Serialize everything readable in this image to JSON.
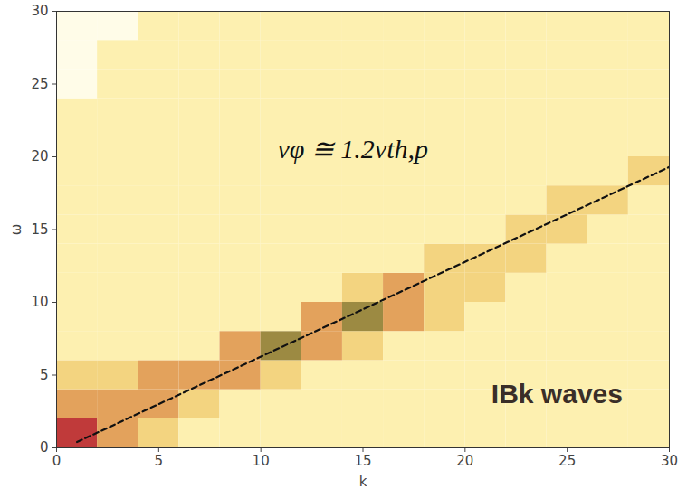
{
  "chart_data": {
    "type": "heatmap",
    "x_label": "k",
    "y_label": "ω",
    "xlim": [
      0,
      30
    ],
    "ylim": [
      0,
      30
    ],
    "xticks": [
      0,
      5,
      10,
      15,
      20,
      25,
      30
    ],
    "yticks": [
      0,
      5,
      10,
      15,
      20,
      25,
      30
    ],
    "grid": false,
    "cells": {
      "k_edges": [
        0,
        2,
        4,
        6,
        8,
        10,
        12,
        14,
        16,
        18,
        20,
        22,
        24,
        26,
        28,
        30
      ],
      "omega_edges": [
        0,
        2,
        4,
        6,
        8,
        10,
        12,
        14,
        16,
        18,
        20,
        22,
        24,
        26,
        28,
        30
      ],
      "z": [
        [
          5,
          3,
          2,
          1,
          1,
          1,
          1,
          1,
          1,
          1,
          1,
          1,
          1,
          1,
          1
        ],
        [
          3,
          3,
          3,
          2,
          1,
          1,
          1,
          1,
          1,
          1,
          1,
          1,
          1,
          1,
          1
        ],
        [
          2,
          2,
          3,
          3,
          3,
          2,
          1,
          1,
          1,
          1,
          1,
          1,
          1,
          1,
          1
        ],
        [
          1,
          1,
          1,
          1,
          3,
          4,
          3,
          2,
          1,
          1,
          1,
          1,
          1,
          1,
          1
        ],
        [
          1,
          1,
          1,
          1,
          1,
          1,
          3,
          4,
          3,
          2,
          1,
          1,
          1,
          1,
          1
        ],
        [
          1,
          1,
          1,
          1,
          1,
          1,
          1,
          2,
          3,
          2,
          2,
          1,
          1,
          1,
          1
        ],
        [
          1,
          1,
          1,
          1,
          1,
          1,
          1,
          1,
          1,
          2,
          2,
          2,
          1,
          1,
          1
        ],
        [
          1,
          1,
          1,
          1,
          1,
          1,
          1,
          1,
          1,
          1,
          1,
          2,
          2,
          1,
          1
        ],
        [
          1,
          1,
          1,
          1,
          1,
          1,
          1,
          1,
          1,
          1,
          1,
          1,
          2,
          2,
          1
        ],
        [
          1,
          1,
          1,
          1,
          1,
          1,
          1,
          1,
          1,
          1,
          1,
          1,
          1,
          1,
          2
        ],
        [
          1,
          1,
          1,
          1,
          1,
          1,
          1,
          1,
          1,
          1,
          1,
          1,
          1,
          1,
          1
        ],
        [
          1,
          1,
          1,
          1,
          1,
          1,
          1,
          1,
          1,
          1,
          1,
          1,
          1,
          1,
          1
        ],
        [
          0,
          1,
          1,
          1,
          1,
          1,
          1,
          1,
          1,
          1,
          1,
          1,
          1,
          1,
          1
        ],
        [
          0,
          1,
          1,
          1,
          1,
          1,
          1,
          1,
          1,
          1,
          1,
          1,
          1,
          1,
          1
        ],
        [
          0,
          0,
          1,
          1,
          1,
          1,
          1,
          1,
          1,
          1,
          1,
          1,
          1,
          1,
          1
        ]
      ]
    },
    "series": [
      {
        "name": "vφ ≅ 1.2vth,p",
        "type": "line",
        "line_style": "dashed",
        "color": "#111111",
        "x": [
          1,
          30
        ],
        "values": [
          0.4,
          19.3
        ]
      }
    ],
    "annotations": [
      {
        "text": "vφ ≅ 1.2vth,p",
        "x": 14.5,
        "y": 20.5
      },
      {
        "text": "IBk waves",
        "x": 24.5,
        "y": 3.7
      }
    ]
  }
}
